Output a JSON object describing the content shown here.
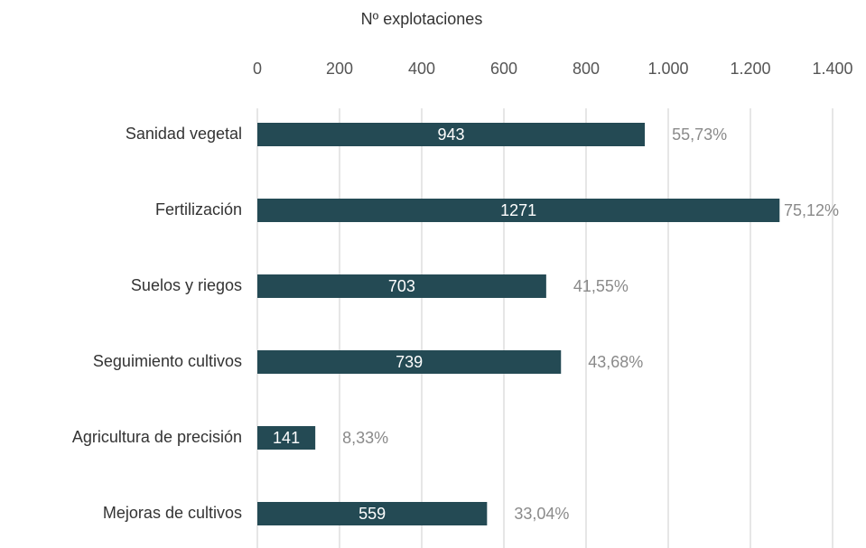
{
  "chart_data": {
    "type": "bar",
    "orientation": "horizontal",
    "x_axis_label": "Nº explotaciones",
    "categories": [
      "Sanidad vegetal",
      "Fertilización",
      "Suelos y riegos",
      "Seguimiento cultivos",
      "Agricultura de precisión",
      "Mejoras de cultivos"
    ],
    "values": [
      943,
      1271,
      703,
      739,
      141,
      559
    ],
    "color": "#244a54",
    "shares": {
      "values": [
        55.73,
        75.12,
        41.55,
        43.68,
        8.33,
        33.04
      ],
      "value_labels": [
        "55,73%",
        "75,12%",
        "41,55%",
        "43,68%",
        "8,33%",
        "33,04%"
      ]
    },
    "xlim": [
      0,
      1400
    ],
    "xticks": [
      0,
      200,
      400,
      600,
      800,
      {
        "value": 1000,
        "label": "1.000"
      },
      {
        "value": 1200,
        "label": "1.200"
      },
      {
        "value": 1400,
        "label": "1.400"
      }
    ],
    "grid": true
  }
}
